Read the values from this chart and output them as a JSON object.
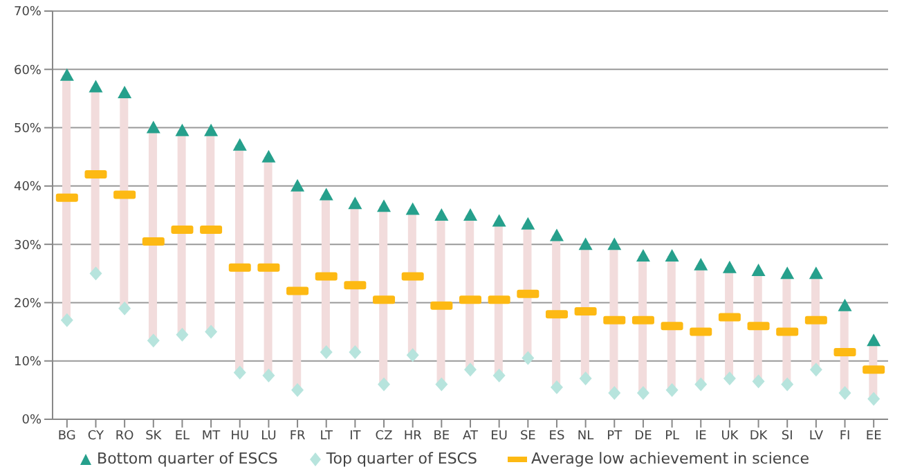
{
  "chart_data": {
    "type": "scatter",
    "categories": [
      "BG",
      "CY",
      "RO",
      "SK",
      "EL",
      "MT",
      "HU",
      "LU",
      "FR",
      "LT",
      "IT",
      "CZ",
      "HR",
      "BE",
      "AT",
      "EU",
      "SE",
      "ES",
      "NL",
      "PT",
      "DE",
      "PL",
      "IE",
      "UK",
      "DK",
      "SI",
      "LV",
      "FI",
      "EE"
    ],
    "series": [
      {
        "type": "bar",
        "color": "#f2dcdc",
        "base": [
          17,
          25,
          19,
          13.5,
          14.5,
          15,
          8,
          7.5,
          5,
          11.5,
          11.5,
          6,
          11,
          6,
          8.5,
          7.5,
          10.5,
          5.5,
          7,
          4.5,
          4.5,
          5,
          6,
          7,
          6.5,
          6,
          8.5,
          4.5,
          3.5
        ],
        "values": [
          42,
          32,
          37,
          36.5,
          35,
          34.5,
          39,
          37.5,
          35,
          27,
          25.5,
          30.5,
          25,
          29,
          26.5,
          26.5,
          23,
          26,
          23,
          25.5,
          23.5,
          23,
          20.5,
          19,
          19,
          19,
          16.5,
          15,
          10
        ]
      },
      {
        "name": "Bottom quarter of ESCS",
        "marker": "triangle",
        "color": "#26a08c",
        "values": [
          59,
          57,
          56,
          50,
          49.5,
          49.5,
          47,
          45,
          40,
          38.5,
          37,
          36.5,
          36,
          35,
          35,
          34,
          33.5,
          31.5,
          30,
          30,
          28,
          28,
          26.5,
          26,
          25.5,
          25,
          25,
          19.5,
          13.5
        ]
      },
      {
        "name": "Top quarter of ESCS",
        "marker": "diamond",
        "color": "#b7e4dd",
        "values": [
          17,
          25,
          19,
          13.5,
          14.5,
          15,
          8,
          7.5,
          5,
          11.5,
          11.5,
          6,
          11,
          6,
          8.5,
          7.5,
          10.5,
          5.5,
          7,
          4.5,
          4.5,
          5,
          6,
          7,
          6.5,
          6,
          8.5,
          4.5,
          3.5
        ]
      },
      {
        "name": "Average low achievement in science",
        "color": "#fdb913",
        "values": [
          38,
          42,
          38.5,
          30.5,
          32.5,
          32.5,
          26,
          26,
          22,
          24.5,
          23,
          20.5,
          24.5,
          19.5,
          20.5,
          20.5,
          21.5,
          18,
          18.5,
          17,
          17,
          16,
          15,
          17.5,
          16,
          15,
          17,
          11.5,
          8.5
        ]
      }
    ],
    "ylim": [
      0,
      70
    ],
    "yticks": [
      {
        "value": 0,
        "label": "0%"
      },
      {
        "value": 10,
        "label": "10%"
      },
      {
        "value": 20,
        "label": "20%"
      },
      {
        "value": 30,
        "label": "30%"
      },
      {
        "value": 40,
        "label": "40%"
      },
      {
        "value": 50,
        "label": "50%"
      },
      {
        "value": 60,
        "label": "60%"
      },
      {
        "value": 70,
        "label": "70%"
      }
    ],
    "grid": "y",
    "legend": "bottom"
  }
}
